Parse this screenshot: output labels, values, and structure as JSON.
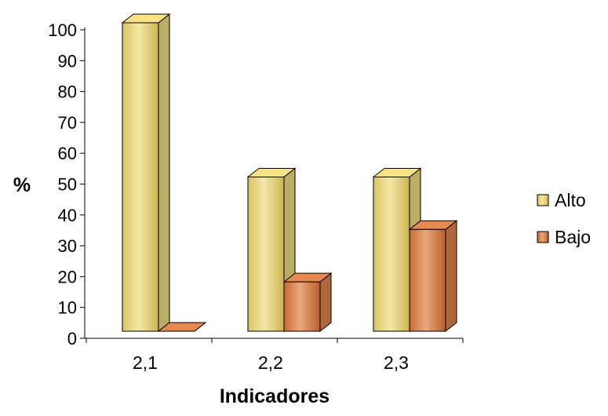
{
  "chart_data": {
    "type": "bar",
    "style": "3d-clustered",
    "categories": [
      "2,1",
      "2,2",
      "2,3"
    ],
    "series": [
      {
        "name": "Alto",
        "values": [
          100,
          50,
          50
        ],
        "color": "#E6D27A"
      },
      {
        "name": "Bajo",
        "values": [
          0,
          16,
          33
        ],
        "color": "#D47F4A"
      }
    ],
    "xlabel": "Indicadores",
    "ylabel": "%",
    "ylim": [
      0,
      100
    ],
    "yticks": [
      "0",
      "10",
      "20",
      "30",
      "40",
      "50",
      "60",
      "70",
      "80",
      "90",
      "100"
    ],
    "grid": false,
    "legend": "right"
  }
}
